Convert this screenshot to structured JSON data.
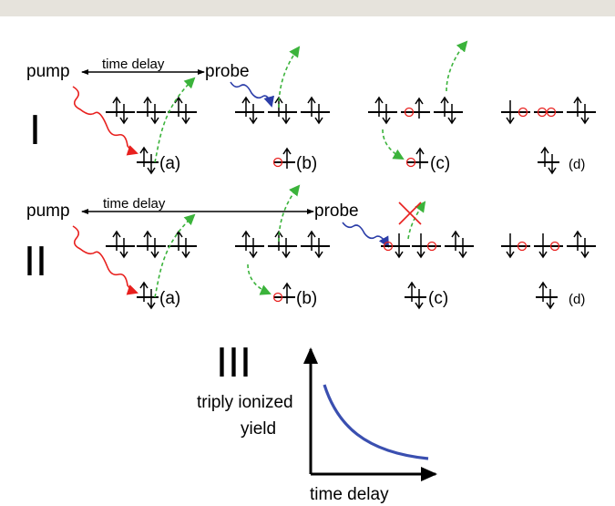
{
  "colors": {
    "top_bar": "#e6e3dc",
    "pump_wave": "#e8201e",
    "probe_wave": "#2b3da8",
    "electron_path": "#3bb33b",
    "vacancy": "#e8201e",
    "blocked": "#e8201e",
    "curve": "#3a4fb0"
  },
  "row1": {
    "numeral": "I",
    "pump_label": "pump",
    "delay_label": "time delay",
    "probe_label": "probe",
    "states": [
      "(a)",
      "(b)",
      "(c)",
      "(d)"
    ]
  },
  "row2": {
    "numeral": "II",
    "pump_label": "pump",
    "delay_label": "time delay",
    "probe_label": "probe",
    "states": [
      "(a)",
      "(b)",
      "(c)",
      "(d)"
    ]
  },
  "panel3": {
    "numeral": "III",
    "ylabel_line1": "triply ionized",
    "ylabel_line2": "yield",
    "xlabel": "time delay",
    "curve_shape": "monotonically decreasing"
  }
}
